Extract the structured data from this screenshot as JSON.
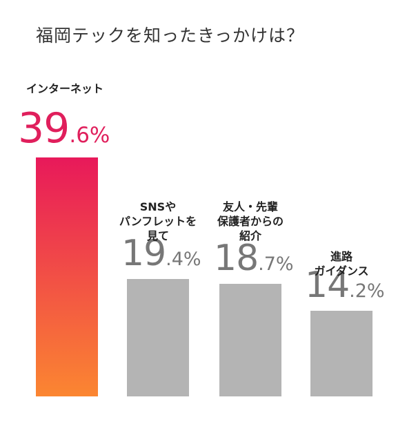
{
  "chart_data": {
    "type": "bar",
    "title": "福岡テックを知ったきっかけは？",
    "categories": [
      "インターネット",
      "SNSや\nパンフレットを\n見て",
      "友人・先輩\n保護者からの\n紹介",
      "進路\nガイダンス"
    ],
    "values": [
      39.6,
      19.4,
      18.7,
      14.2
    ],
    "value_labels": [
      {
        "int": "39",
        "dec": ".6%"
      },
      {
        "int": "19",
        "dec": ".4%"
      },
      {
        "int": "18",
        "dec": ".7%"
      },
      {
        "int": "14",
        "dec": ".2%"
      }
    ],
    "ylim": [
      0,
      39.6
    ],
    "colors": {
      "highlight_top": "#e8195a",
      "highlight_bottom": "#fb8631",
      "highlight_text": "#e01f5c",
      "other_bar": "#b4b4b4",
      "other_text": "#777777"
    }
  }
}
